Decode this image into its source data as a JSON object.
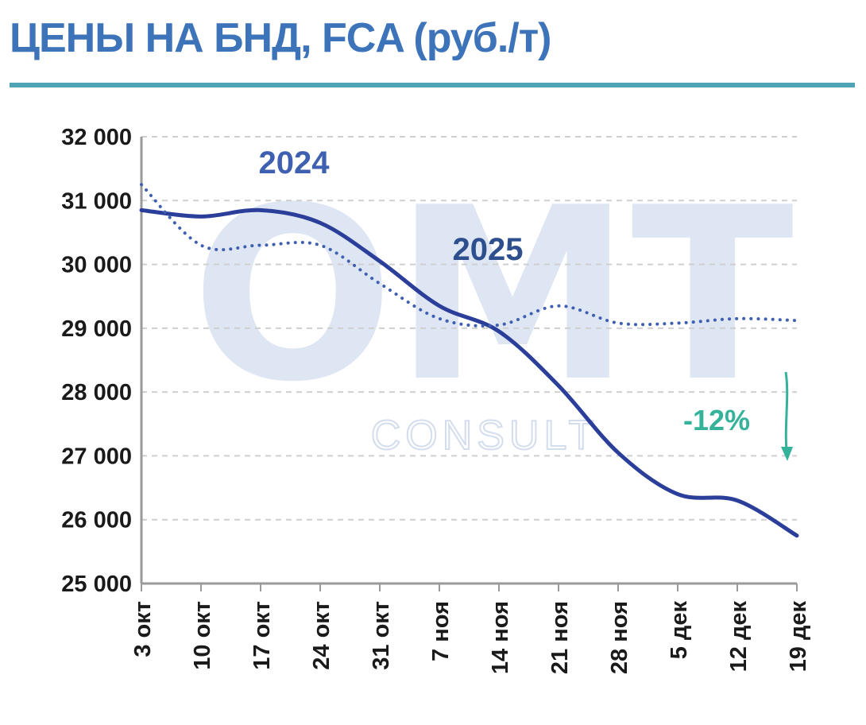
{
  "header": {
    "title": "ЦЕНЫ НА БНД, FCA (руб./т)"
  },
  "colors": {
    "title": "#3d73b9",
    "rule": "#4ea3b5",
    "series_2025": "#2b3f9a",
    "series_2024": "#3f5fb0",
    "annotation": "#35b39a",
    "grid": "#cfcfcf",
    "axis": "#9a9a9a"
  },
  "watermark": {
    "logo": "OMT",
    "sub": "CONSULT"
  },
  "chart_data": {
    "type": "line",
    "title": "ЦЕНЫ НА БНД, FCA (руб./т)",
    "xlabel": "",
    "ylabel": "",
    "categories": [
      "3 окт",
      "10 окт",
      "17 окт",
      "24 окт",
      "31 окт",
      "7 ноя",
      "14 ноя",
      "21 ноя",
      "28 ноя",
      "5 дек",
      "12 дек",
      "19 дек"
    ],
    "ylim": [
      25000,
      32000
    ],
    "yticks": [
      32000,
      31000,
      30000,
      29000,
      28000,
      27000,
      26000,
      25000
    ],
    "ytick_labels": [
      "32 000",
      "31 000",
      "30 000",
      "29 000",
      "28 000",
      "27 000",
      "26 000",
      "25 000"
    ],
    "grid": true,
    "series": [
      {
        "name": "2025",
        "style": "solid",
        "values": [
          30850,
          30750,
          30850,
          30650,
          30050,
          29350,
          28950,
          28100,
          27050,
          26400,
          26300,
          25750
        ]
      },
      {
        "name": "2024",
        "style": "dotted",
        "values": [
          31250,
          30300,
          30300,
          30300,
          29700,
          29150,
          29050,
          29350,
          29080,
          29080,
          29150,
          29120
        ]
      }
    ],
    "annotations": [
      {
        "text": "-12%",
        "type": "arrow-down"
      }
    ]
  }
}
